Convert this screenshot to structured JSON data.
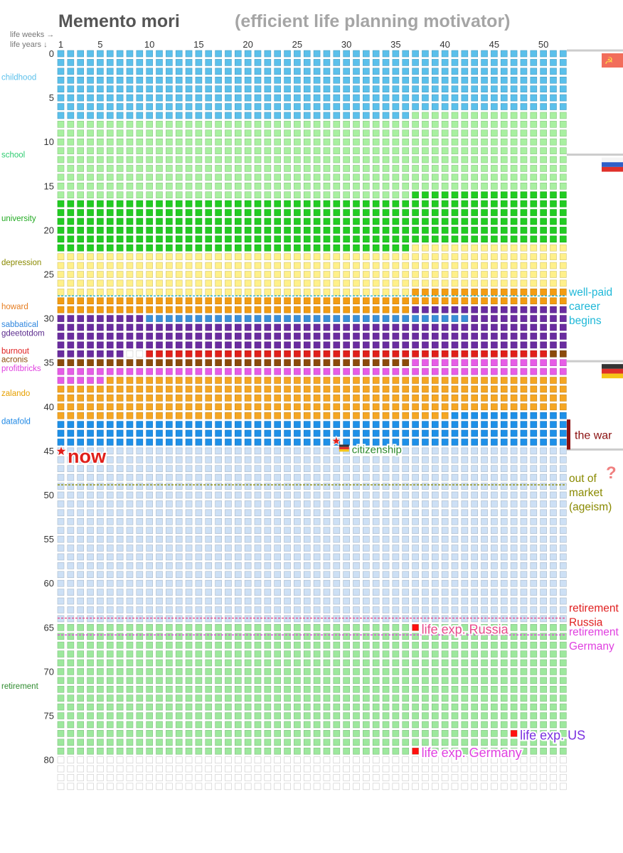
{
  "chart_data": {
    "type": "heatmap",
    "title": "Memento mori",
    "subtitle": "(efficient life planning motivator)",
    "x_axis_label": "life weeks →",
    "y_axis_label": "life years ↓",
    "x_ticks": [
      "1",
      "5",
      "10",
      "15",
      "20",
      "25",
      "30",
      "35",
      "40",
      "45",
      "50"
    ],
    "y_ticks": [
      "0",
      "5",
      "10",
      "15",
      "20",
      "25",
      "30",
      "35",
      "40",
      "45",
      "50",
      "55",
      "60",
      "65",
      "70",
      "75",
      "80"
    ],
    "weeks_per_year": 52,
    "years_total": 84,
    "phases": [
      {
        "label": "childhood",
        "color": "#5bc0eb",
        "label_color": "#5bc0eb",
        "label_year": 3,
        "start": [
          0,
          1
        ],
        "end": [
          7,
          36
        ]
      },
      {
        "label": "school",
        "color": "#a8f0a0",
        "label_color": "#2ecc71",
        "label_year": 11.8,
        "start": [
          7,
          37
        ],
        "end": [
          16,
          36
        ]
      },
      {
        "label": "university",
        "color": "#22cc22",
        "label_color": "#22aa22",
        "label_year": 19,
        "start": [
          16,
          37
        ],
        "end": [
          22,
          36
        ]
      },
      {
        "label": "depression",
        "color": "#fff08a",
        "label_color": "#8a8a00",
        "label_year": 24,
        "start": [
          22,
          37
        ],
        "end": [
          27,
          36
        ]
      },
      {
        "label": "howard",
        "color": "#f39c12",
        "label_color": "#e67e22",
        "label_year": 29,
        "start": [
          27,
          37
        ],
        "end": [
          29,
          36
        ]
      },
      {
        "label": "gdeetotdom",
        "color": "#6a2ca0",
        "label_color": "#5b2c8e",
        "label_year": 32,
        "start": [
          29,
          37
        ],
        "end": [
          34,
          7
        ]
      },
      {
        "label": "sabbatical",
        "color": "#3a8fd8",
        "label_color": "#2e86de",
        "label_year": 31,
        "start": [
          30,
          10
        ],
        "end": [
          30,
          42
        ]
      },
      {
        "label": "burnout",
        "color": "#e0201b",
        "label_color": "#e02020",
        "label_year": 34,
        "start": [
          34,
          10
        ],
        "end": [
          34,
          50
        ]
      },
      {
        "label": "acronis",
        "color": "#8b4a0a",
        "label_color": "#8b4a0a",
        "label_year": 35,
        "start": [
          34,
          51
        ],
        "end": [
          35,
          36
        ]
      },
      {
        "label": "profitbricks",
        "color": "#e65ce6",
        "label_color": "#e040e0",
        "label_year": 36,
        "start": [
          35,
          37
        ],
        "end": [
          37,
          5
        ]
      },
      {
        "label": "zalando",
        "color": "#f5a623",
        "label_color": "#e6a000",
        "label_year": 38.8,
        "start": [
          37,
          6
        ],
        "end": [
          41,
          40
        ]
      },
      {
        "label": "datafold",
        "color": "#1e90e8",
        "label_color": "#1e88e5",
        "label_year": 42,
        "start": [
          41,
          41
        ],
        "end": [
          45,
          0
        ]
      },
      {
        "label": "",
        "color": "#cde0f5",
        "label_color": "",
        "label_year": 0,
        "start": [
          45,
          1
        ],
        "end": [
          64,
          52
        ]
      },
      {
        "label": "retirement",
        "color": "#9de89d",
        "label_color": "#2e8b2e",
        "label_year": 72,
        "start": [
          65,
          1
        ],
        "end": [
          79,
          52
        ]
      },
      {
        "label": "",
        "color": "#ffffff",
        "label_color": "",
        "label_year": 0,
        "start": [
          80,
          1
        ],
        "end": [
          83,
          52
        ]
      }
    ],
    "dashed_lines": [
      {
        "year": 27.8,
        "color": "#1fb8d8"
      },
      {
        "year": 49.2,
        "color": "#8a8a00"
      },
      {
        "year": 64.3,
        "color": "#e84a8a"
      },
      {
        "year": 66.2,
        "color": "#e040e0"
      }
    ],
    "country_periods": [
      {
        "from_year": 0,
        "to_year": 11.8,
        "flag": "ussr"
      },
      {
        "from_year": 11.8,
        "to_year": 35.2,
        "flag": "russia"
      },
      {
        "from_year": 35.2,
        "to_year": 45.2,
        "flag": "germany"
      }
    ],
    "right_annotations": [
      {
        "text": [
          "well-paid",
          "career",
          "begins"
        ],
        "color": "#1fb8d8",
        "year": 27.6
      },
      {
        "text": [
          "out of",
          "market",
          "(ageism)"
        ],
        "color": "#8a8a00",
        "year": 48.7
      },
      {
        "text": [
          "retirement",
          "Russia"
        ],
        "color": "#e02020",
        "year": 63.4
      },
      {
        "text": [
          "retirement",
          "Germany"
        ],
        "color": "#e040e0",
        "year": 66.1
      }
    ],
    "war": {
      "label": "the war",
      "color": "#8b1010",
      "from_year": 41.8,
      "to_year": 45.2
    },
    "future_marker": {
      "label": "?",
      "color": "#f08080",
      "year": 47.2
    },
    "markers": [
      {
        "label": "now",
        "type": "star",
        "year": 45,
        "week": 1,
        "color": "#e0201b",
        "label_color": "#e0201b"
      },
      {
        "label": "citizenship",
        "type": "star-flag",
        "year": 44,
        "week": 29,
        "color": "#e0201b",
        "label_color": "#2e8b2e"
      },
      {
        "label": "life exp. Russia",
        "type": "square",
        "year": 65,
        "week": 37,
        "color": "#ff1010",
        "label_color": "#e84a8a"
      },
      {
        "label": "life exp. US",
        "type": "square",
        "year": 77,
        "week": 47,
        "color": "#ff1010",
        "label_color": "#7a30e0"
      },
      {
        "label": "life exp. Germany",
        "type": "square",
        "year": 79,
        "week": 37,
        "color": "#ff1010",
        "label_color": "#e040e0"
      }
    ]
  }
}
